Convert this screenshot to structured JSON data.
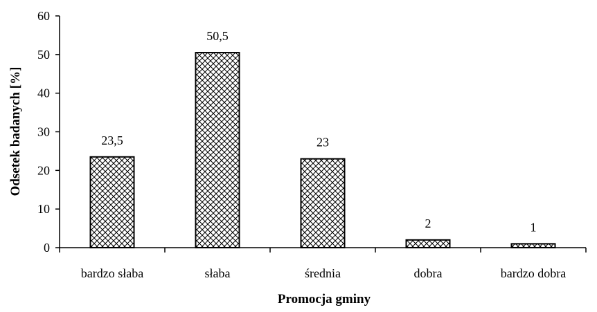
{
  "chart_data": {
    "type": "bar",
    "title": "",
    "xlabel": "Promocja gminy",
    "ylabel": "Odsetek badanych [%]",
    "categories": [
      "bardzo słaba",
      "słaba",
      "średnia",
      "dobra",
      "bardzo dobra"
    ],
    "values": [
      23.5,
      50.5,
      23,
      2,
      1
    ],
    "value_labels": [
      "23,5",
      "50,5",
      "23",
      "2",
      "1"
    ],
    "yticks": [
      "0",
      "10",
      "20",
      "30",
      "40",
      "50",
      "60"
    ],
    "ylim": [
      0,
      60
    ],
    "grid": false,
    "legend": "none",
    "bar_fill": "crosshatch",
    "bar_stroke": "#000000"
  }
}
